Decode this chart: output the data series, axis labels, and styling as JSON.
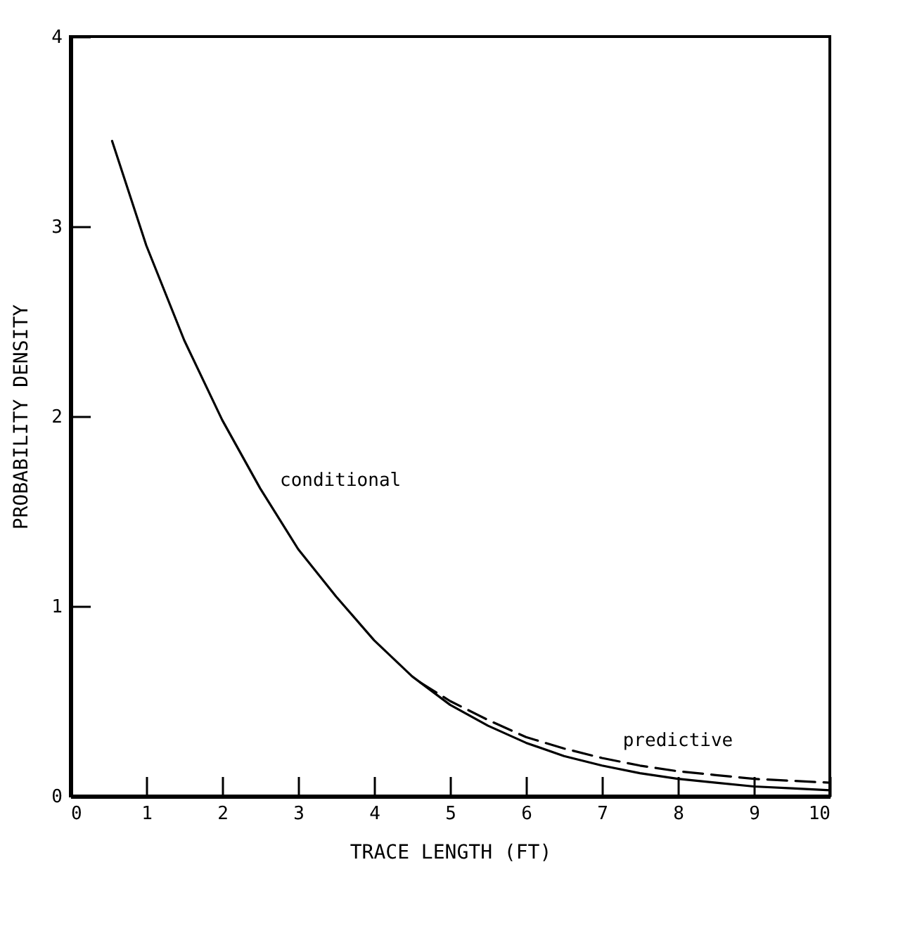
{
  "chart_data": {
    "type": "line",
    "xlabel": "TRACE LENGTH (FT)",
    "ylabel": "PROBABILITY DENSITY",
    "xlim": [
      0,
      10
    ],
    "ylim": [
      0,
      4
    ],
    "xticks": [
      0,
      1,
      2,
      3,
      4,
      5,
      6,
      7,
      8,
      9,
      10
    ],
    "yticks": [
      0,
      1,
      2,
      3,
      4
    ],
    "grid": false,
    "legend": false,
    "marker": "none",
    "series": [
      {
        "name": "conditional",
        "color": "#000000",
        "line_style": "solid",
        "x": [
          0.55,
          1,
          1.5,
          2,
          2.5,
          3,
          3.5,
          4,
          4.5,
          5,
          5.5,
          6,
          6.5,
          7,
          7.5,
          8,
          8.5,
          9,
          9.5,
          10
        ],
        "values": [
          3.45,
          2.9,
          2.4,
          1.98,
          1.62,
          1.3,
          1.05,
          0.82,
          0.63,
          0.48,
          0.37,
          0.28,
          0.21,
          0.16,
          0.12,
          0.09,
          0.07,
          0.05,
          0.04,
          0.03
        ]
      },
      {
        "name": "predictive",
        "color": "#000000",
        "line_style": "dashed",
        "x": [
          4.6,
          5,
          5.5,
          6,
          6.5,
          7,
          7.5,
          8,
          8.5,
          9,
          9.5,
          10
        ],
        "values": [
          0.6,
          0.5,
          0.4,
          0.31,
          0.25,
          0.2,
          0.16,
          0.13,
          0.11,
          0.09,
          0.08,
          0.07
        ]
      }
    ]
  }
}
